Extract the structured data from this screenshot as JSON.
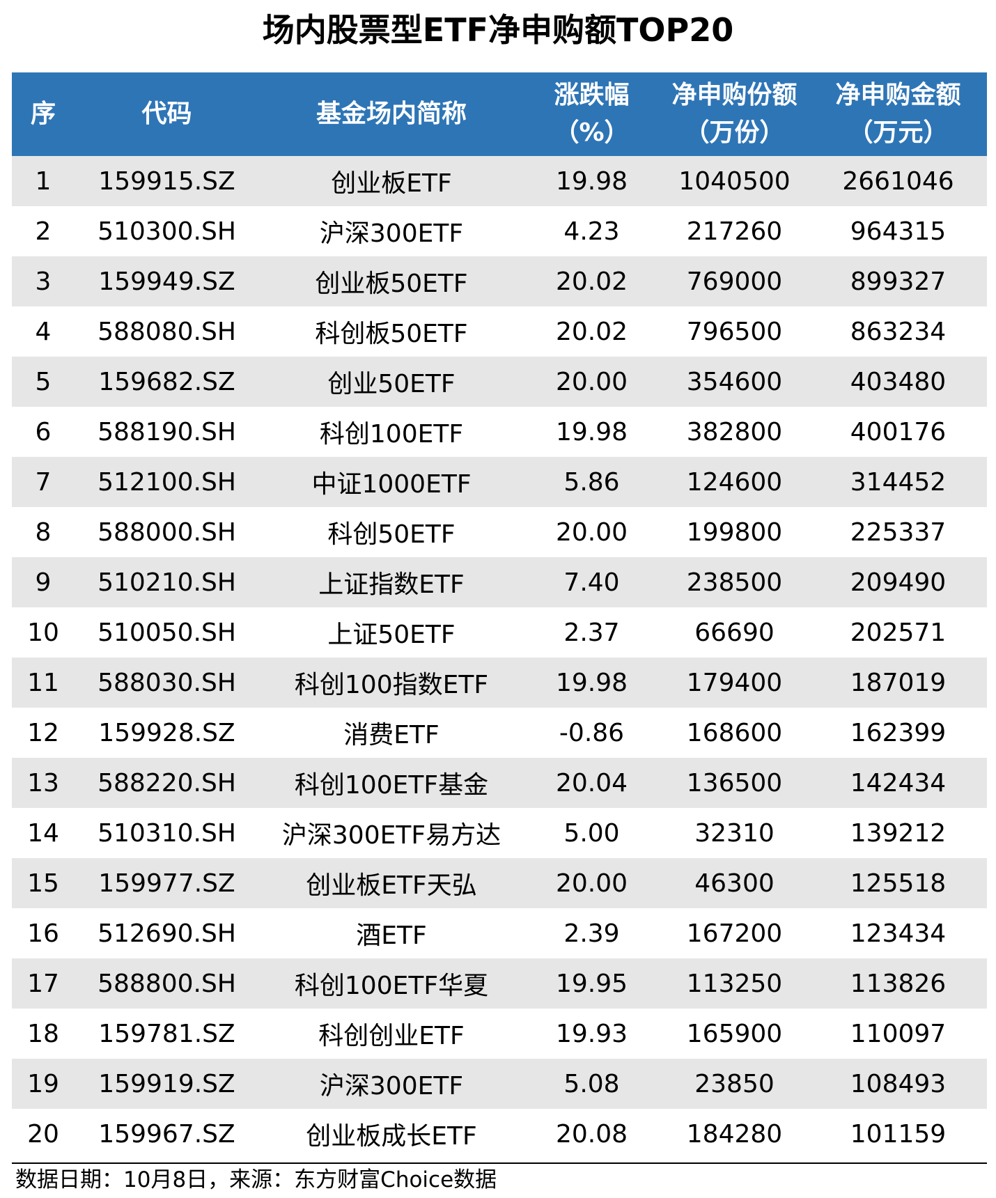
{
  "title": "场内股票型ETF净申购额TOP20",
  "table": {
    "headers": {
      "idx": "序",
      "code": "代码",
      "name": "基金场内简称",
      "change_l1": "涨跌幅",
      "change_l2": "（%）",
      "share_l1": "净申购份额",
      "share_l2": "（万份）",
      "amount_l1": "净申购金额",
      "amount_l2": "（万元）"
    },
    "rows": [
      {
        "idx": "1",
        "code": "159915.SZ",
        "name": "创业板ETF",
        "change": "19.98",
        "share": "1040500",
        "amount": "2661046"
      },
      {
        "idx": "2",
        "code": "510300.SH",
        "name": "沪深300ETF",
        "change": "4.23",
        "share": "217260",
        "amount": "964315"
      },
      {
        "idx": "3",
        "code": "159949.SZ",
        "name": "创业板50ETF",
        "change": "20.02",
        "share": "769000",
        "amount": "899327"
      },
      {
        "idx": "4",
        "code": "588080.SH",
        "name": "科创板50ETF",
        "change": "20.02",
        "share": "796500",
        "amount": "863234"
      },
      {
        "idx": "5",
        "code": "159682.SZ",
        "name": "创业50ETF",
        "change": "20.00",
        "share": "354600",
        "amount": "403480"
      },
      {
        "idx": "6",
        "code": "588190.SH",
        "name": "科创100ETF",
        "change": "19.98",
        "share": "382800",
        "amount": "400176"
      },
      {
        "idx": "7",
        "code": "512100.SH",
        "name": "中证1000ETF",
        "change": "5.86",
        "share": "124600",
        "amount": "314452"
      },
      {
        "idx": "8",
        "code": "588000.SH",
        "name": "科创50ETF",
        "change": "20.00",
        "share": "199800",
        "amount": "225337"
      },
      {
        "idx": "9",
        "code": "510210.SH",
        "name": "上证指数ETF",
        "change": "7.40",
        "share": "238500",
        "amount": "209490"
      },
      {
        "idx": "10",
        "code": "510050.SH",
        "name": "上证50ETF",
        "change": "2.37",
        "share": "66690",
        "amount": "202571"
      },
      {
        "idx": "11",
        "code": "588030.SH",
        "name": "科创100指数ETF",
        "change": "19.98",
        "share": "179400",
        "amount": "187019"
      },
      {
        "idx": "12",
        "code": "159928.SZ",
        "name": "消费ETF",
        "change": "-0.86",
        "share": "168600",
        "amount": "162399"
      },
      {
        "idx": "13",
        "code": "588220.SH",
        "name": "科创100ETF基金",
        "change": "20.04",
        "share": "136500",
        "amount": "142434"
      },
      {
        "idx": "14",
        "code": "510310.SH",
        "name": "沪深300ETF易方达",
        "change": "5.00",
        "share": "32310",
        "amount": "139212"
      },
      {
        "idx": "15",
        "code": "159977.SZ",
        "name": "创业板ETF天弘",
        "change": "20.00",
        "share": "46300",
        "amount": "125518"
      },
      {
        "idx": "16",
        "code": "512690.SH",
        "name": "酒ETF",
        "change": "2.39",
        "share": "167200",
        "amount": "123434"
      },
      {
        "idx": "17",
        "code": "588800.SH",
        "name": "科创100ETF华夏",
        "change": "19.95",
        "share": "113250",
        "amount": "113826"
      },
      {
        "idx": "18",
        "code": "159781.SZ",
        "name": "科创创业ETF",
        "change": "19.93",
        "share": "165900",
        "amount": "110097"
      },
      {
        "idx": "19",
        "code": "159919.SZ",
        "name": "沪深300ETF",
        "change": "5.08",
        "share": "23850",
        "amount": "108493"
      },
      {
        "idx": "20",
        "code": "159967.SZ",
        "name": "创业板成长ETF",
        "change": "20.08",
        "share": "184280",
        "amount": "101159"
      }
    ]
  },
  "footer": "数据日期：10月8日，来源：东方财富Choice数据"
}
